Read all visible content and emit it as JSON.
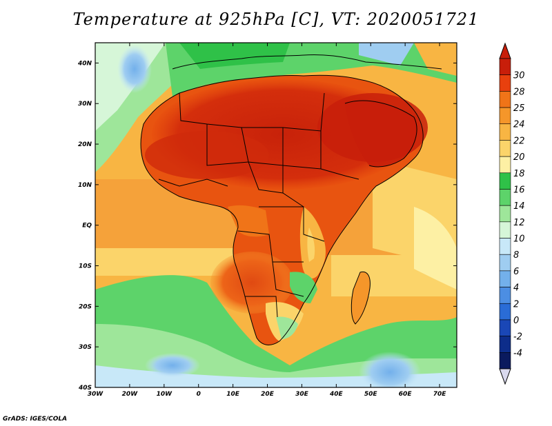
{
  "title": "Temperature at 925hPa [C], VT: 2020051721",
  "footer": "GrADS: IGES/COLA",
  "chart_data": {
    "type": "heatmap",
    "title": "Temperature at 925hPa [C], VT: 2020051721",
    "x_range": [
      -30,
      75
    ],
    "y_range": [
      -40,
      45
    ],
    "x_ticks": [
      {
        "value": -30,
        "label": "30W"
      },
      {
        "value": -20,
        "label": "20W"
      },
      {
        "value": -10,
        "label": "10W"
      },
      {
        "value": 0,
        "label": "0"
      },
      {
        "value": 10,
        "label": "10E"
      },
      {
        "value": 20,
        "label": "20E"
      },
      {
        "value": 30,
        "label": "30E"
      },
      {
        "value": 40,
        "label": "40E"
      },
      {
        "value": 50,
        "label": "50E"
      },
      {
        "value": 60,
        "label": "60E"
      },
      {
        "value": 70,
        "label": "70E"
      }
    ],
    "y_ticks": [
      {
        "value": 40,
        "label": "40N"
      },
      {
        "value": 30,
        "label": "30N"
      },
      {
        "value": 20,
        "label": "20N"
      },
      {
        "value": 10,
        "label": "10N"
      },
      {
        "value": 0,
        "label": "EQ"
      },
      {
        "value": -10,
        "label": "10S"
      },
      {
        "value": -20,
        "label": "20S"
      },
      {
        "value": -30,
        "label": "30S"
      },
      {
        "value": -40,
        "label": "40S"
      }
    ],
    "colorbar": {
      "labels": [
        "30",
        "28",
        "25",
        "24",
        "22",
        "20",
        "18",
        "16",
        "14",
        "12",
        "10",
        "8",
        "6",
        "4",
        "2",
        "0",
        "-2",
        "-4"
      ],
      "colors": [
        "#c81e0a",
        "#e8400e",
        "#f07418",
        "#f5962a",
        "#f8b543",
        "#fbd46a",
        "#fdf0a4",
        "#2fc148",
        "#5dd36a",
        "#9ee69a",
        "#d6f6d8",
        "#c8e8f8",
        "#9fcdf1",
        "#73b0eb",
        "#4c8ee3",
        "#2a6cd6",
        "#1a47b6",
        "#0d2d8a",
        "#0a1a5e"
      ],
      "top_cap_color": "#c81e0a",
      "bottom_cap_color": "#d9d9ee"
    }
  }
}
